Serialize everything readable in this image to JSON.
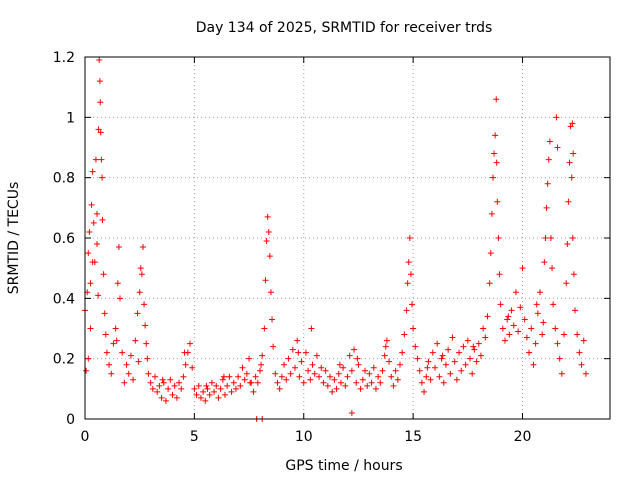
{
  "chart_data": {
    "type": "scatter",
    "title": "Day 134 of 2025, SRMTID for receiver trds",
    "xlabel": "GPS time / hours",
    "ylabel": "SRMTID / TECUs",
    "xlim": [
      0,
      24
    ],
    "ylim": [
      0,
      1.2
    ],
    "xticks": [
      0,
      5,
      10,
      15,
      20
    ],
    "xtick_labels": [
      "0",
      "5",
      "10",
      "15",
      "20"
    ],
    "yticks": [
      0,
      0.2,
      0.4,
      0.6,
      0.8,
      1.0,
      1.2
    ],
    "ytick_labels": [
      "0",
      "0.2",
      "0.4",
      "0.6",
      "0.8",
      "1",
      "1.2"
    ],
    "grid": true,
    "marker": "plus",
    "color": "#ff0000",
    "series": [
      {
        "name": "SRMTID",
        "points": [
          [
            0.0,
            0.36
          ],
          [
            0.05,
            0.16
          ],
          [
            0.1,
            0.42
          ],
          [
            0.15,
            0.55
          ],
          [
            0.2,
            0.62
          ],
          [
            0.25,
            0.45
          ],
          [
            0.3,
            0.71
          ],
          [
            0.35,
            0.82
          ],
          [
            0.4,
            0.65
          ],
          [
            0.45,
            0.52
          ],
          [
            0.5,
            0.86
          ],
          [
            0.55,
            0.68
          ],
          [
            0.6,
            0.41
          ],
          [
            0.62,
            0.96
          ],
          [
            0.65,
            1.19
          ],
          [
            0.68,
            1.12
          ],
          [
            0.7,
            1.05
          ],
          [
            0.72,
            0.95
          ],
          [
            0.75,
            0.86
          ],
          [
            0.78,
            0.8
          ],
          [
            0.8,
            0.66
          ],
          [
            0.85,
            0.48
          ],
          [
            0.9,
            0.35
          ],
          [
            0.95,
            0.28
          ],
          [
            1.0,
            0.22
          ],
          [
            1.1,
            0.18
          ],
          [
            1.2,
            0.15
          ],
          [
            1.3,
            0.25
          ],
          [
            1.4,
            0.3
          ],
          [
            1.5,
            0.45
          ],
          [
            1.55,
            0.57
          ],
          [
            1.6,
            0.4
          ],
          [
            1.7,
            0.22
          ],
          [
            1.8,
            0.12
          ],
          [
            1.9,
            0.18
          ],
          [
            2.0,
            0.15
          ],
          [
            2.1,
            0.21
          ],
          [
            2.2,
            0.13
          ],
          [
            2.3,
            0.26
          ],
          [
            2.4,
            0.35
          ],
          [
            2.5,
            0.42
          ],
          [
            2.55,
            0.5
          ],
          [
            2.6,
            0.48
          ],
          [
            2.65,
            0.57
          ],
          [
            2.7,
            0.38
          ],
          [
            2.75,
            0.31
          ],
          [
            2.8,
            0.25
          ],
          [
            2.85,
            0.2
          ],
          [
            2.9,
            0.15
          ],
          [
            3.0,
            0.12
          ],
          [
            3.1,
            0.1
          ],
          [
            3.2,
            0.14
          ],
          [
            3.3,
            0.09
          ],
          [
            3.4,
            0.11
          ],
          [
            3.5,
            0.07
          ],
          [
            3.6,
            0.12
          ],
          [
            3.7,
            0.06
          ],
          [
            3.8,
            0.1
          ],
          [
            3.9,
            0.13
          ],
          [
            4.0,
            0.08
          ],
          [
            4.1,
            0.11
          ],
          [
            4.2,
            0.07
          ],
          [
            4.3,
            0.12
          ],
          [
            4.4,
            0.1
          ],
          [
            4.5,
            0.14
          ],
          [
            4.6,
            0.18
          ],
          [
            4.7,
            0.22
          ],
          [
            4.8,
            0.25
          ],
          [
            4.9,
            0.17
          ],
          [
            5.0,
            0.1
          ],
          [
            5.1,
            0.08
          ],
          [
            5.2,
            0.11
          ],
          [
            5.3,
            0.07
          ],
          [
            5.4,
            0.09
          ],
          [
            5.5,
            0.06
          ],
          [
            5.6,
            0.1
          ],
          [
            5.7,
            0.08
          ],
          [
            5.8,
            0.12
          ],
          [
            5.9,
            0.09
          ],
          [
            6.0,
            0.11
          ],
          [
            6.1,
            0.07
          ],
          [
            6.2,
            0.1
          ],
          [
            6.3,
            0.13
          ],
          [
            6.4,
            0.08
          ],
          [
            6.5,
            0.11
          ],
          [
            6.6,
            0.14
          ],
          [
            6.7,
            0.09
          ],
          [
            6.8,
            0.12
          ],
          [
            6.9,
            0.1
          ],
          [
            7.0,
            0.14
          ],
          [
            7.1,
            0.11
          ],
          [
            7.2,
            0.17
          ],
          [
            7.3,
            0.13
          ],
          [
            7.4,
            0.15
          ],
          [
            7.5,
            0.2
          ],
          [
            7.6,
            0.12
          ],
          [
            7.7,
            0.09
          ],
          [
            7.8,
            0.14
          ],
          [
            7.9,
            0.12
          ],
          [
            8.0,
            0.16
          ],
          [
            8.1,
            0.21
          ],
          [
            8.2,
            0.3
          ],
          [
            8.25,
            0.46
          ],
          [
            8.3,
            0.59
          ],
          [
            8.35,
            0.67
          ],
          [
            8.4,
            0.62
          ],
          [
            8.45,
            0.54
          ],
          [
            8.5,
            0.42
          ],
          [
            8.55,
            0.33
          ],
          [
            8.6,
            0.24
          ],
          [
            8.7,
            0.15
          ],
          [
            8.8,
            0.12
          ],
          [
            8.9,
            0.1
          ],
          [
            9.0,
            0.14
          ],
          [
            9.1,
            0.18
          ],
          [
            9.2,
            0.13
          ],
          [
            9.3,
            0.2
          ],
          [
            9.4,
            0.15
          ],
          [
            9.5,
            0.23
          ],
          [
            9.6,
            0.17
          ],
          [
            9.7,
            0.26
          ],
          [
            9.8,
            0.14
          ],
          [
            9.9,
            0.19
          ],
          [
            10.0,
            0.12
          ],
          [
            10.1,
            0.22
          ],
          [
            10.2,
            0.16
          ],
          [
            10.3,
            0.13
          ],
          [
            10.4,
            0.18
          ],
          [
            10.5,
            0.15
          ],
          [
            10.6,
            0.21
          ],
          [
            10.7,
            0.14
          ],
          [
            10.8,
            0.17
          ],
          [
            10.9,
            0.12
          ],
          [
            11.0,
            0.16
          ],
          [
            11.1,
            0.11
          ],
          [
            11.2,
            0.14
          ],
          [
            11.3,
            0.09
          ],
          [
            11.4,
            0.13
          ],
          [
            11.5,
            0.1
          ],
          [
            11.6,
            0.15
          ],
          [
            11.7,
            0.12
          ],
          [
            11.8,
            0.17
          ],
          [
            11.9,
            0.11
          ],
          [
            12.0,
            0.14
          ],
          [
            12.1,
            0.21
          ],
          [
            12.2,
            0.16
          ],
          [
            12.3,
            0.23
          ],
          [
            12.4,
            0.12
          ],
          [
            12.5,
            0.18
          ],
          [
            12.6,
            0.1
          ],
          [
            12.7,
            0.13
          ],
          [
            12.8,
            0.16
          ],
          [
            12.9,
            0.11
          ],
          [
            13.0,
            0.15
          ],
          [
            13.1,
            0.12
          ],
          [
            13.2,
            0.17
          ],
          [
            13.3,
            0.1
          ],
          [
            13.4,
            0.14
          ],
          [
            13.5,
            0.12
          ],
          [
            13.6,
            0.16
          ],
          [
            13.7,
            0.21
          ],
          [
            13.8,
            0.26
          ],
          [
            13.9,
            0.19
          ],
          [
            14.0,
            0.14
          ],
          [
            14.1,
            0.11
          ],
          [
            14.2,
            0.16
          ],
          [
            14.3,
            0.13
          ],
          [
            14.4,
            0.18
          ],
          [
            14.5,
            0.22
          ],
          [
            14.6,
            0.28
          ],
          [
            14.7,
            0.36
          ],
          [
            14.75,
            0.45
          ],
          [
            14.8,
            0.52
          ],
          [
            14.85,
            0.6
          ],
          [
            14.9,
            0.48
          ],
          [
            14.95,
            0.38
          ],
          [
            15.0,
            0.3
          ],
          [
            15.1,
            0.24
          ],
          [
            15.2,
            0.2
          ],
          [
            15.3,
            0.16
          ],
          [
            15.4,
            0.12
          ],
          [
            15.5,
            0.09
          ],
          [
            15.6,
            0.14
          ],
          [
            15.7,
            0.19
          ],
          [
            15.8,
            0.13
          ],
          [
            15.9,
            0.22
          ],
          [
            16.0,
            0.17
          ],
          [
            16.1,
            0.25
          ],
          [
            16.2,
            0.14
          ],
          [
            16.3,
            0.2
          ],
          [
            16.4,
            0.12
          ],
          [
            16.5,
            0.18
          ],
          [
            16.6,
            0.23
          ],
          [
            16.7,
            0.15
          ],
          [
            16.8,
            0.27
          ],
          [
            16.9,
            0.19
          ],
          [
            17.0,
            0.13
          ],
          [
            17.1,
            0.22
          ],
          [
            17.2,
            0.16
          ],
          [
            17.3,
            0.24
          ],
          [
            17.4,
            0.18
          ],
          [
            17.5,
            0.26
          ],
          [
            17.6,
            0.2
          ],
          [
            17.7,
            0.15
          ],
          [
            17.8,
            0.23
          ],
          [
            17.9,
            0.19
          ],
          [
            18.0,
            0.25
          ],
          [
            18.1,
            0.21
          ],
          [
            18.2,
            0.3
          ],
          [
            18.3,
            0.27
          ],
          [
            18.4,
            0.34
          ],
          [
            18.5,
            0.45
          ],
          [
            18.55,
            0.55
          ],
          [
            18.6,
            0.68
          ],
          [
            18.65,
            0.8
          ],
          [
            18.7,
            0.88
          ],
          [
            18.75,
            0.94
          ],
          [
            18.8,
            1.06
          ],
          [
            18.82,
            0.85
          ],
          [
            18.85,
            0.72
          ],
          [
            18.9,
            0.6
          ],
          [
            18.95,
            0.48
          ],
          [
            19.0,
            0.38
          ],
          [
            19.1,
            0.3
          ],
          [
            19.2,
            0.26
          ],
          [
            19.3,
            0.33
          ],
          [
            19.4,
            0.28
          ],
          [
            19.5,
            0.36
          ],
          [
            19.6,
            0.31
          ],
          [
            19.7,
            0.42
          ],
          [
            19.8,
            0.29
          ],
          [
            19.9,
            0.37
          ],
          [
            20.0,
            0.5
          ],
          [
            20.1,
            0.33
          ],
          [
            20.2,
            0.27
          ],
          [
            20.3,
            0.22
          ],
          [
            20.4,
            0.3
          ],
          [
            20.5,
            0.18
          ],
          [
            20.6,
            0.25
          ],
          [
            20.7,
            0.35
          ],
          [
            20.8,
            0.42
          ],
          [
            20.9,
            0.28
          ],
          [
            21.0,
            0.52
          ],
          [
            21.05,
            0.6
          ],
          [
            21.1,
            0.7
          ],
          [
            21.15,
            0.78
          ],
          [
            21.2,
            0.86
          ],
          [
            21.25,
            0.92
          ],
          [
            21.3,
            0.6
          ],
          [
            21.35,
            0.5
          ],
          [
            21.4,
            0.38
          ],
          [
            21.5,
            0.3
          ],
          [
            21.6,
            0.25
          ],
          [
            21.7,
            0.2
          ],
          [
            21.8,
            0.15
          ],
          [
            21.9,
            0.28
          ],
          [
            22.0,
            0.45
          ],
          [
            22.05,
            0.58
          ],
          [
            22.1,
            0.72
          ],
          [
            22.15,
            0.85
          ],
          [
            22.2,
            0.97
          ],
          [
            22.25,
            0.8
          ],
          [
            22.3,
            0.6
          ],
          [
            22.35,
            0.48
          ],
          [
            22.4,
            0.36
          ],
          [
            22.5,
            0.28
          ],
          [
            22.6,
            0.22
          ],
          [
            22.7,
            0.18
          ],
          [
            22.8,
            0.26
          ],
          [
            22.9,
            0.15
          ],
          [
            21.55,
            1.0
          ],
          [
            22.28,
            0.98
          ],
          [
            21.6,
            0.9
          ],
          [
            22.32,
            0.88
          ],
          [
            20.65,
            0.38
          ],
          [
            20.95,
            0.32
          ],
          [
            19.35,
            0.34
          ],
          [
            17.75,
            0.24
          ],
          [
            16.35,
            0.21
          ],
          [
            15.65,
            0.17
          ],
          [
            13.75,
            0.24
          ],
          [
            12.45,
            0.2
          ],
          [
            11.65,
            0.18
          ],
          [
            10.35,
            0.3
          ],
          [
            9.75,
            0.22
          ],
          [
            8.05,
            0.18
          ],
          [
            7.55,
            0.12
          ],
          [
            6.35,
            0.14
          ],
          [
            5.55,
            0.11
          ],
          [
            4.55,
            0.22
          ],
          [
            3.55,
            0.13
          ],
          [
            2.45,
            0.19
          ],
          [
            1.45,
            0.26
          ],
          [
            0.55,
            0.58
          ],
          [
            0.35,
            0.52
          ],
          [
            0.25,
            0.3
          ],
          [
            0.15,
            0.2
          ],
          [
            7.85,
            0.0
          ],
          [
            8.1,
            0.0
          ],
          [
            12.2,
            0.02
          ]
        ]
      }
    ]
  }
}
